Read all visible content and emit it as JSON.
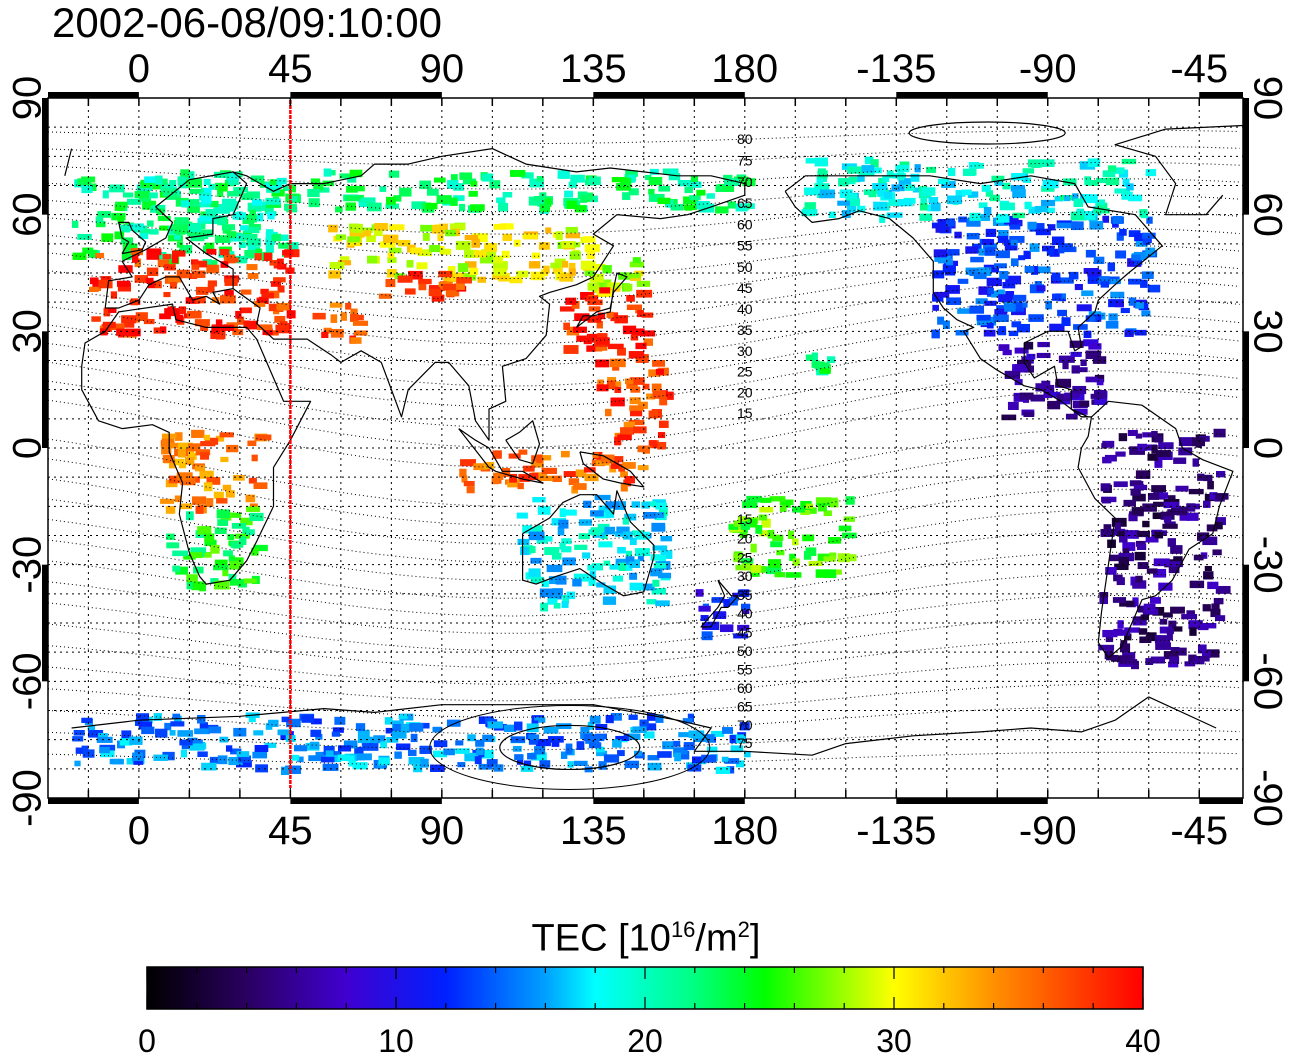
{
  "title": "2002-06-08/09:10:00",
  "map": {
    "lon_start": -27,
    "lon_end": 328,
    "lat_min": -90,
    "lat_max": 90,
    "top_ticks": [
      "0",
      "45",
      "90",
      "135",
      "180",
      "-135",
      "-90",
      "-45"
    ],
    "bottom_ticks": [
      "0",
      "45",
      "90",
      "135",
      "180",
      "-135",
      "-90",
      "-45"
    ],
    "left_ticks": [
      "90",
      "60",
      "30",
      "0",
      "-30",
      "-60",
      "-90"
    ],
    "right_ticks": [
      "90",
      "60",
      "30",
      "0",
      "-30",
      "-60",
      "-90"
    ],
    "grid": "dotted",
    "marker_line": {
      "lon": 45,
      "color": "#ff0000"
    },
    "contour_labels_north": [
      "80",
      "75",
      "70",
      "65",
      "60",
      "55",
      "50",
      "45",
      "40",
      "35",
      "30",
      "25",
      "20",
      "15"
    ],
    "contour_labels_south": [
      "15",
      "20",
      "25",
      "30",
      "35",
      "40",
      "45",
      "50",
      "55",
      "60",
      "65",
      "70",
      "75"
    ]
  },
  "colorbar": {
    "label_text": "TEC  [10",
    "label_exp": "16",
    "label_mid": "/m",
    "label_exp2": "2",
    "label_end": "]",
    "min": 0,
    "max": 40,
    "ticks": [
      "0",
      "10",
      "20",
      "30",
      "40"
    ],
    "colormap": "jet"
  },
  "tec_regions": [
    {
      "name": "europe-high",
      "lon": [
        -20,
        45
      ],
      "lat": [
        48,
        70
      ],
      "tec": 22
    },
    {
      "name": "europe-mid",
      "lon": [
        -15,
        45
      ],
      "lat": [
        30,
        52
      ],
      "tec": 38
    },
    {
      "name": "scandinavia",
      "lon": [
        0,
        40
      ],
      "lat": [
        55,
        72
      ],
      "tec": 21
    },
    {
      "name": "russia-north",
      "lon": [
        50,
        180
      ],
      "lat": [
        62,
        72
      ],
      "tec": 22
    },
    {
      "name": "central-asia",
      "lon": [
        55,
        130
      ],
      "lat": [
        44,
        58
      ],
      "tec": 30
    },
    {
      "name": "central-asia-south",
      "lon": [
        70,
        95
      ],
      "lat": [
        38,
        46
      ],
      "tec": 38
    },
    {
      "name": "middle-east",
      "lon": [
        50,
        65
      ],
      "lat": [
        28,
        38
      ],
      "tec": 37
    },
    {
      "name": "japan-north",
      "lon": [
        128,
        148
      ],
      "lat": [
        40,
        55
      ],
      "tec": 29
    },
    {
      "name": "japan",
      "lon": [
        125,
        150
      ],
      "lat": [
        25,
        42
      ],
      "tec": 38
    },
    {
      "name": "pacific-west",
      "lon": [
        135,
        155
      ],
      "lat": [
        0,
        25
      ],
      "tec": 37
    },
    {
      "name": "africa-north",
      "lon": [
        5,
        35
      ],
      "lat": [
        -15,
        5
      ],
      "tec": 35
    },
    {
      "name": "africa-south",
      "lon": [
        8,
        35
      ],
      "lat": [
        -35,
        -15
      ],
      "tec": 24
    },
    {
      "name": "indonesia",
      "lon": [
        95,
        150
      ],
      "lat": [
        -10,
        0
      ],
      "tec": 36
    },
    {
      "name": "australia",
      "lon": [
        112,
        155
      ],
      "lat": [
        -40,
        -12
      ],
      "tec": 18
    },
    {
      "name": "new-zealand",
      "lon": [
        165,
        180
      ],
      "lat": [
        -48,
        -35
      ],
      "tec": 11
    },
    {
      "name": "south-pacific",
      "lon": [
        175,
        210
      ],
      "lat": [
        -32,
        -12
      ],
      "tec": 26
    },
    {
      "name": "north-america",
      "lon": [
        235,
        300
      ],
      "lat": [
        30,
        60
      ],
      "tec": 13
    },
    {
      "name": "canada-north",
      "lon": [
        195,
        300
      ],
      "lat": [
        60,
        75
      ],
      "tec": 19
    },
    {
      "name": "hawaii",
      "lon": [
        197,
        205
      ],
      "lat": [
        17,
        25
      ],
      "tec": 23
    },
    {
      "name": "central-america",
      "lon": [
        255,
        285
      ],
      "lat": [
        8,
        28
      ],
      "tec": 6
    },
    {
      "name": "south-america",
      "lon": [
        285,
        320
      ],
      "lat": [
        -55,
        5
      ],
      "tec": 5
    },
    {
      "name": "antarctica",
      "lon": [
        -20,
        180
      ],
      "lat": [
        -82,
        -68
      ],
      "tec": 15
    }
  ]
}
